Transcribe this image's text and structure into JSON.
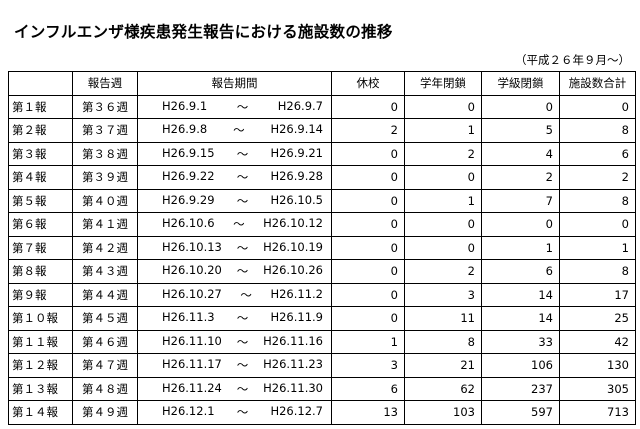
{
  "title": "インフルエンザ様疾患発生報告における施設数の推移",
  "note": "（平成２６年９月～）",
  "headers": {
    "label": "",
    "week": "報告週",
    "period": "報告期間",
    "school_closed": "休校",
    "grade_closed": "学年閉鎖",
    "class_closed": "学級閉鎖",
    "total": "施設数合計"
  },
  "rows": [
    {
      "label": "第１報",
      "week": "第３６週",
      "start": "H26.9.1",
      "sep": "～",
      "end": "H26.9.7",
      "school_closed": "0",
      "grade_closed": "0",
      "class_closed": "0",
      "total": "0"
    },
    {
      "label": "第２報",
      "week": "第３７週",
      "start": "H26.9.8",
      "sep": "～",
      "end": "H26.9.14",
      "school_closed": "2",
      "grade_closed": "1",
      "class_closed": "5",
      "total": "8"
    },
    {
      "label": "第３報",
      "week": "第３８週",
      "start": "H26.9.15",
      "sep": "～",
      "end": "H26.9.21",
      "school_closed": "0",
      "grade_closed": "2",
      "class_closed": "4",
      "total": "6"
    },
    {
      "label": "第４報",
      "week": "第３９週",
      "start": "H26.9.22",
      "sep": "～",
      "end": "H26.9.28",
      "school_closed": "0",
      "grade_closed": "0",
      "class_closed": "2",
      "total": "2"
    },
    {
      "label": "第５報",
      "week": "第４０週",
      "start": "H26.9.29",
      "sep": "～",
      "end": "H26.10.5",
      "school_closed": "0",
      "grade_closed": "1",
      "class_closed": "7",
      "total": "8"
    },
    {
      "label": "第６報",
      "week": "第４１週",
      "start": "H26.10.6",
      "sep": "～",
      "end": "H26.10.12",
      "school_closed": "0",
      "grade_closed": "0",
      "class_closed": "0",
      "total": "0"
    },
    {
      "label": "第７報",
      "week": "第４２週",
      "start": "H26.10.13",
      "sep": "～",
      "end": "H26.10.19",
      "school_closed": "0",
      "grade_closed": "0",
      "class_closed": "1",
      "total": "1"
    },
    {
      "label": "第８報",
      "week": "第４３週",
      "start": "H26.10.20",
      "sep": "～",
      "end": "H26.10.26",
      "school_closed": "0",
      "grade_closed": "2",
      "class_closed": "6",
      "total": "8"
    },
    {
      "label": "第９報",
      "week": "第４４週",
      "start": "H26.10.27",
      "sep": "～",
      "end": "H26.11.2",
      "school_closed": "0",
      "grade_closed": "3",
      "class_closed": "14",
      "total": "17"
    },
    {
      "label": "第１０報",
      "week": "第４５週",
      "start": "H26.11.3",
      "sep": "～",
      "end": "H26.11.9",
      "school_closed": "0",
      "grade_closed": "11",
      "class_closed": "14",
      "total": "25"
    },
    {
      "label": "第１１報",
      "week": "第４６週",
      "start": "H26.11.10",
      "sep": "～",
      "end": "H26.11.16",
      "school_closed": "1",
      "grade_closed": "8",
      "class_closed": "33",
      "total": "42"
    },
    {
      "label": "第１２報",
      "week": "第４７週",
      "start": "H26.11.17",
      "sep": "～",
      "end": "H26.11.23",
      "school_closed": "3",
      "grade_closed": "21",
      "class_closed": "106",
      "total": "130"
    },
    {
      "label": "第１３報",
      "week": "第４８週",
      "start": "H26.11.24",
      "sep": "～",
      "end": "H26.11.30",
      "school_closed": "6",
      "grade_closed": "62",
      "class_closed": "237",
      "total": "305"
    },
    {
      "label": "第１４報",
      "week": "第４９週",
      "start": "H26.12.1",
      "sep": "～",
      "end": "H26.12.7",
      "school_closed": "13",
      "grade_closed": "103",
      "class_closed": "597",
      "total": "713"
    }
  ]
}
